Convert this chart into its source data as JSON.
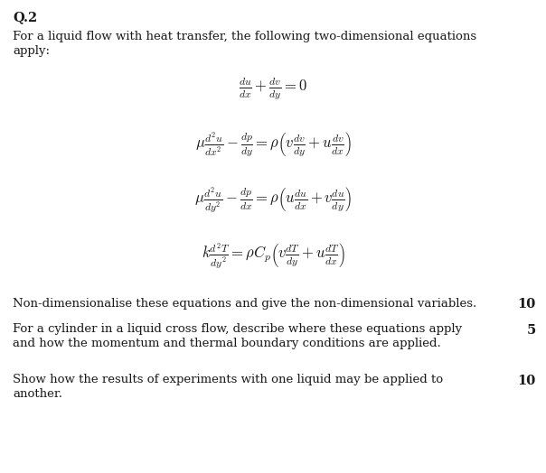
{
  "background_color": "#ffffff",
  "title": "Q.2",
  "intro_line1": "For a liquid flow with heat transfer, the following two-dimensional equations",
  "intro_line2": "apply:",
  "eq1": "$\\frac{du}{dx} + \\frac{dv}{dy} = 0$",
  "eq2": "$\\mu \\frac{d^{2}u}{dx^{2}} - \\frac{dp}{dy} = \\rho \\left( v \\frac{dv}{dy} + u \\frac{dv}{dx} \\right)$",
  "eq3": "$\\mu \\frac{d^{2}u}{dy^{2}} - \\frac{dp}{dx} = \\rho \\left( u \\frac{du}{dx} + v \\frac{du}{dy} \\right)$",
  "eq4": "$k \\frac{d^{2}T}{dy^{2}} = \\rho C_{p} \\left( v \\frac{dT}{dy} + u \\frac{dT}{dx} \\right)$",
  "q1_line1": "Non-dimensionalise these equations and give the non-dimensional variables.",
  "q2_line1": "For a cylinder in a liquid cross flow, describe where these equations apply",
  "q2_line2": "and how the momentum and thermal boundary conditions are applied.",
  "q3_line1": "Show how the results of experiments with one liquid may be applied to",
  "q3_line2": "another.",
  "q_marks": [
    "10",
    "5",
    "10"
  ],
  "text_color": "#1a1a1a",
  "font_size_title": 10.5,
  "font_size_text": 9.5,
  "font_size_eq": 10.5,
  "font_size_marks": 10.5
}
